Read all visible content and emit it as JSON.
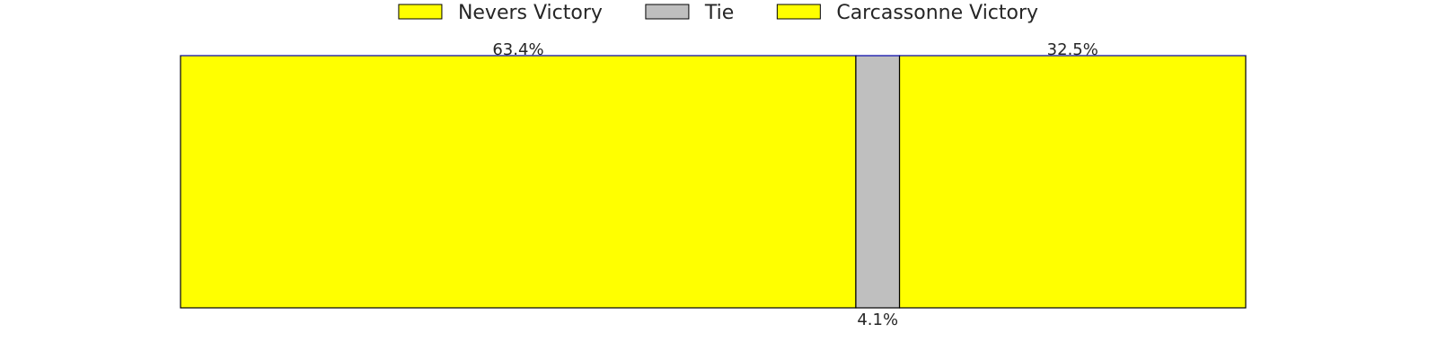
{
  "chart_data": {
    "type": "bar",
    "orientation": "horizontal-stacked",
    "title": "",
    "xlabel": "",
    "ylabel": "",
    "grid": false,
    "axes_visible": false,
    "legend_placement": "top-center",
    "xlim": [
      0,
      100
    ],
    "series": [
      {
        "name": "Nevers Victory",
        "value": 63.4,
        "label": "63.4%",
        "color": "#ffff00",
        "label_position": "top"
      },
      {
        "name": "Tie",
        "value": 4.1,
        "label": "4.1%",
        "color": "#bfbfbf",
        "label_position": "bottom"
      },
      {
        "name": "Carcassonne Victory",
        "value": 32.5,
        "label": "32.5%",
        "color": "#ffff00",
        "label_position": "top"
      }
    ]
  }
}
